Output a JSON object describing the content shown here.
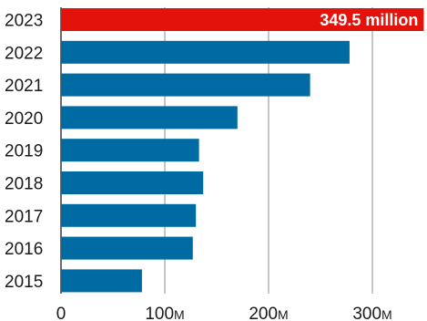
{
  "chart_data": {
    "type": "bar",
    "orientation": "horizontal",
    "categories": [
      "2023",
      "2022",
      "2021",
      "2020",
      "2019",
      "2018",
      "2017",
      "2016",
      "2015"
    ],
    "values": [
      349.5,
      278,
      240,
      170,
      133,
      137,
      130,
      127,
      78
    ],
    "colors": [
      "#e3120b",
      "#006ba2",
      "#006ba2",
      "#006ba2",
      "#006ba2",
      "#006ba2",
      "#006ba2",
      "#006ba2",
      "#006ba2"
    ],
    "highlight_color": "#e3120b",
    "bar_color": "#006ba2",
    "data_labels": [
      {
        "category": "2023",
        "text": "349.5 million"
      }
    ],
    "x_ticks": [
      {
        "value": 0,
        "label": "0",
        "unit": ""
      },
      {
        "value": 100,
        "label": "100",
        "unit": "M"
      },
      {
        "value": 200,
        "label": "200",
        "unit": "M"
      },
      {
        "value": 300,
        "label": "300",
        "unit": "M"
      }
    ],
    "xlim": [
      0,
      354
    ],
    "grid": true,
    "title": "",
    "xlabel": "",
    "ylabel": ""
  }
}
